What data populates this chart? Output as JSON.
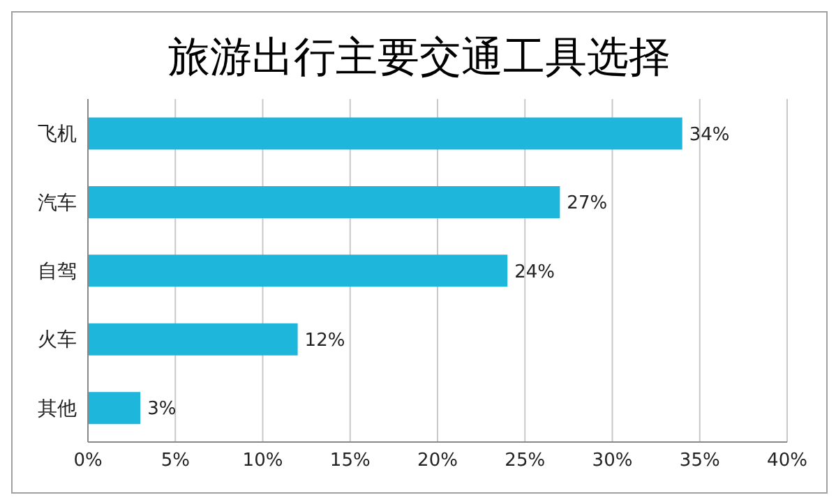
{
  "chart_data": {
    "type": "bar",
    "orientation": "horizontal",
    "title": "旅游出行主要交通工具选择",
    "categories": [
      "飞机",
      "汽车",
      "自驾",
      "火车",
      "其他"
    ],
    "values": [
      34,
      27,
      24,
      12,
      3
    ],
    "value_labels": [
      "34%",
      "27%",
      "24%",
      "12%",
      "3%"
    ],
    "color": "#1fb6dc",
    "xlim": [
      0,
      40
    ],
    "xticks": [
      {
        "value": 0,
        "label": "0%"
      },
      {
        "value": 5,
        "label": "5%"
      },
      {
        "value": 10,
        "label": "10%"
      },
      {
        "value": 15,
        "label": "15%"
      },
      {
        "value": 20,
        "label": "20%"
      },
      {
        "value": 25,
        "label": "25%"
      },
      {
        "value": 30,
        "label": "30%"
      },
      {
        "value": 35,
        "label": "35%"
      },
      {
        "value": 40,
        "label": "40%"
      }
    ],
    "grid": "x",
    "legend": false
  }
}
